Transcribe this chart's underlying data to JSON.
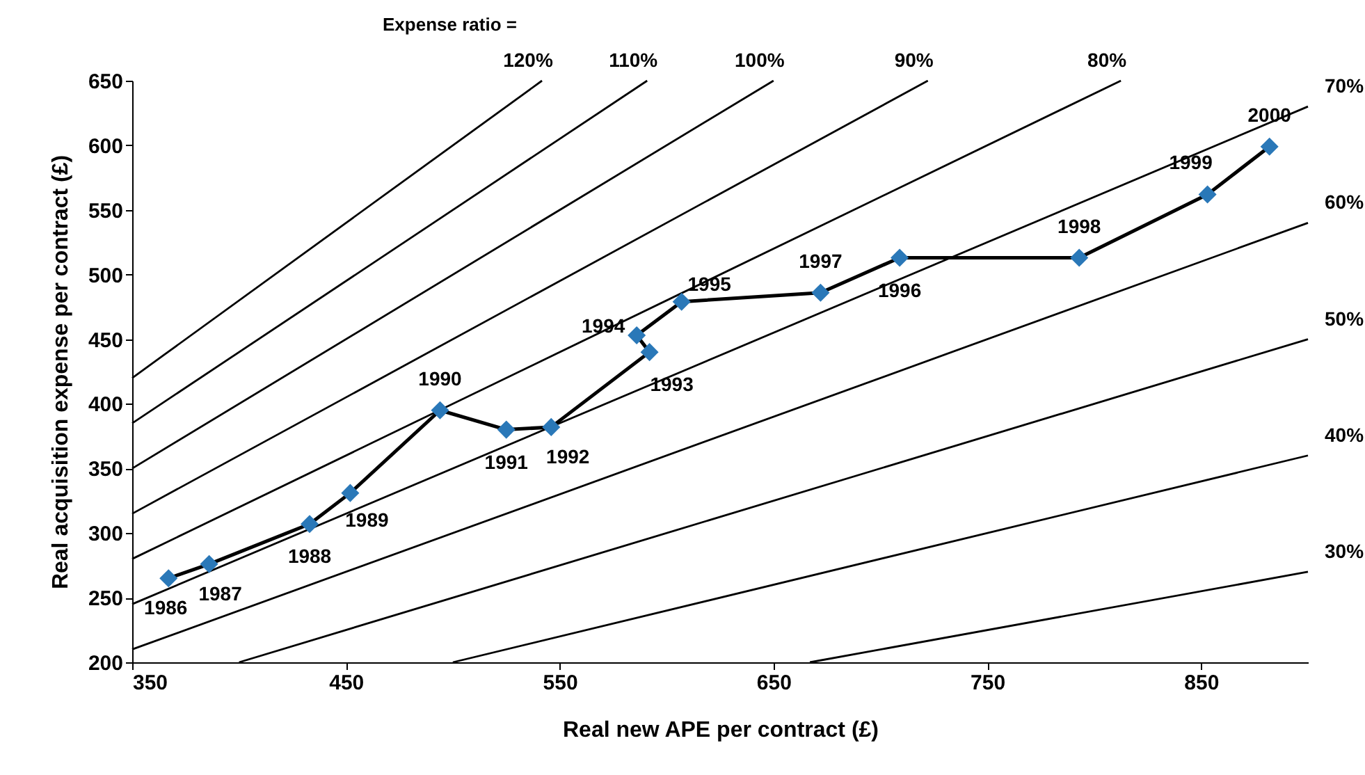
{
  "chart_data": {
    "type": "line",
    "xlabel": "Real new APE per contract (£)",
    "ylabel": "Real acquisition expense per contract (£)",
    "xlim": [
      350,
      900
    ],
    "xticks": [
      350,
      450,
      550,
      650,
      750,
      850
    ],
    "ylim": [
      200,
      650
    ],
    "yticks": [
      200,
      250,
      300,
      350,
      400,
      450,
      500,
      550,
      600,
      650
    ],
    "grid": false,
    "series": [
      {
        "name": "120%",
        "color": "#000000",
        "x": [
          350,
          541.7
        ],
        "values": [
          420,
          650
        ],
        "marker": "none"
      },
      {
        "name": "110%",
        "color": "#000000",
        "x": [
          350,
          590.9
        ],
        "values": [
          385,
          650
        ],
        "marker": "none"
      },
      {
        "name": "100%",
        "color": "#000000",
        "x": [
          350,
          650
        ],
        "values": [
          350,
          650
        ],
        "marker": "none"
      },
      {
        "name": "90%",
        "color": "#000000",
        "x": [
          350,
          722.2
        ],
        "values": [
          315,
          650
        ],
        "marker": "none"
      },
      {
        "name": "80%",
        "color": "#000000",
        "x": [
          350,
          812.5
        ],
        "values": [
          280,
          650
        ],
        "marker": "none"
      },
      {
        "name": "70%",
        "color": "#000000",
        "x": [
          350,
          900
        ],
        "values": [
          245,
          630
        ],
        "marker": "none"
      },
      {
        "name": "60%",
        "color": "#000000",
        "x": [
          350,
          900
        ],
        "values": [
          210,
          540
        ],
        "marker": "none"
      },
      {
        "name": "50%",
        "color": "#000000",
        "x": [
          400,
          900
        ],
        "values": [
          200,
          450
        ],
        "marker": "none"
      },
      {
        "name": "40%",
        "color": "#000000",
        "x": [
          500,
          900
        ],
        "values": [
          200,
          360
        ],
        "marker": "none"
      },
      {
        "name": "30%",
        "color": "#000000",
        "x": [
          667,
          900
        ],
        "values": [
          200,
          270
        ],
        "marker": "none"
      },
      {
        "type": "line",
        "color": "#000000",
        "marker": "none",
        "x": [
          367,
          386,
          433,
          452,
          494,
          525,
          546,
          592,
          586,
          607,
          672,
          709,
          793,
          853,
          882
        ],
        "values": [
          265,
          276,
          307,
          331,
          395,
          380,
          382,
          440,
          453,
          479,
          486,
          513,
          513,
          562,
          599
        ]
      },
      {
        "type": "scatter",
        "color": "#2a78b8",
        "marker": "diamond",
        "x": [
          367,
          386,
          433,
          452,
          494,
          525,
          546,
          592,
          586,
          607,
          672,
          709,
          793,
          853,
          882
        ],
        "values": [
          265,
          276,
          307,
          331,
          395,
          380,
          382,
          440,
          453,
          479,
          486,
          513,
          513,
          562,
          599
        ]
      }
    ],
    "annotations": [
      "Expense ratio =",
      {
        "text": "1986",
        "x": 367,
        "y": 265
      },
      {
        "text": "1987",
        "x": 386,
        "y": 276
      },
      {
        "text": "1988",
        "x": 433,
        "y": 307
      },
      {
        "text": "1989",
        "x": 452,
        "y": 331
      },
      {
        "text": "1990",
        "x": 494,
        "y": 395
      },
      {
        "text": "1991",
        "x": 525,
        "y": 380
      },
      {
        "text": "1992",
        "x": 546,
        "y": 382
      },
      {
        "text": "1993",
        "x": 592,
        "y": 440
      },
      {
        "text": "1994",
        "x": 586,
        "y": 453
      },
      {
        "text": "1995",
        "x": 607,
        "y": 479
      },
      {
        "text": "1997",
        "x": 672,
        "y": 486
      },
      {
        "text": "1996",
        "x": 709,
        "y": 513
      },
      {
        "text": "1998",
        "x": 793,
        "y": 513
      },
      {
        "text": "1999",
        "x": 853,
        "y": 562
      },
      {
        "text": "2000",
        "x": 882,
        "y": 599
      }
    ]
  }
}
